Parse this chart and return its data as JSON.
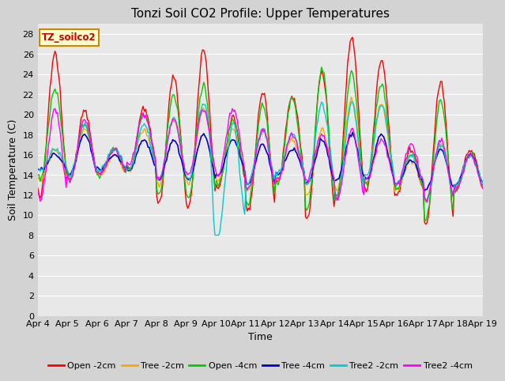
{
  "title": "Tonzi Soil CO2 Profile: Upper Temperatures",
  "xlabel": "Time",
  "ylabel": "Soil Temperature (C)",
  "ylim": [
    0,
    29
  ],
  "yticks": [
    0,
    2,
    4,
    6,
    8,
    10,
    12,
    14,
    16,
    18,
    20,
    22,
    24,
    26,
    28
  ],
  "xtick_labels": [
    "Apr 4",
    "Apr 5",
    "Apr 6",
    "Apr 7",
    "Apr 8",
    "Apr 9",
    "Apr 10",
    "Apr 11",
    "Apr 12",
    "Apr 13",
    "Apr 14",
    "Apr 15",
    "Apr 16",
    "Apr 17",
    "Apr 18",
    "Apr 19"
  ],
  "legend_label": "TZ_soilco2",
  "series_labels": [
    "Open -2cm",
    "Tree -2cm",
    "Open -4cm",
    "Tree -4cm",
    "Tree2 -2cm",
    "Tree2 -4cm"
  ],
  "series_colors": [
    "#ff0000",
    "#ffa500",
    "#00cc00",
    "#0000cc",
    "#00cccc",
    "#ff00ff"
  ],
  "series_linewidths": [
    1.0,
    1.0,
    1.0,
    1.2,
    1.0,
    1.0
  ],
  "background_color": "#d3d3d3",
  "plot_bg_color": "#e8e8e8",
  "title_fontsize": 11,
  "axis_fontsize": 9,
  "tick_fontsize": 8
}
